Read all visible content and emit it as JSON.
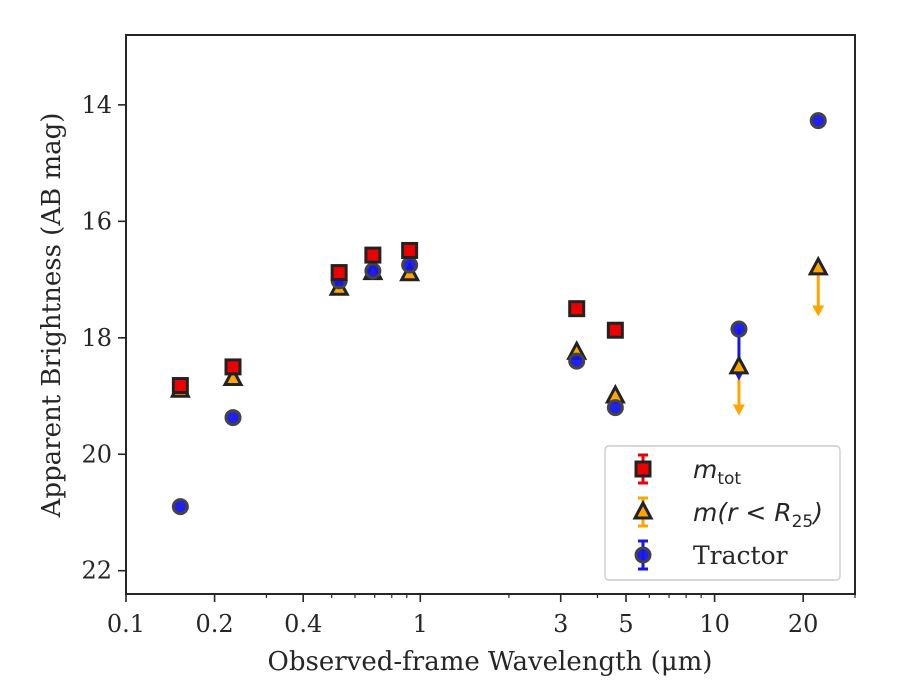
{
  "chart_data": {
    "type": "scatter",
    "xlabel": "Observed-frame Wavelength (μm)",
    "ylabel": "Apparent Brightness (AB mag)",
    "xscale": "log",
    "xlim": [
      0.1,
      30
    ],
    "ylim": [
      22.4,
      12.8
    ],
    "y_inverted": true,
    "xticks": [
      {
        "value": 0.1,
        "label": "0.1"
      },
      {
        "value": 0.2,
        "label": "0.2"
      },
      {
        "value": 0.4,
        "label": "0.4"
      },
      {
        "value": 1,
        "label": "1"
      },
      {
        "value": 3,
        "label": "3"
      },
      {
        "value": 5,
        "label": "5"
      },
      {
        "value": 10,
        "label": "10"
      },
      {
        "value": 20,
        "label": "20"
      }
    ],
    "yticks": [
      {
        "value": 14,
        "label": "14"
      },
      {
        "value": 16,
        "label": "16"
      },
      {
        "value": 18,
        "label": "18"
      },
      {
        "value": 20,
        "label": "20"
      },
      {
        "value": 22,
        "label": "22"
      }
    ],
    "grid": false,
    "legend_position": "lower-right",
    "series": [
      {
        "name": "m_tot",
        "legend_parts": {
          "main": "m",
          "sub": "tot"
        },
        "marker": "square",
        "color": "#ee0000",
        "edge": "#222222",
        "points": [
          {
            "x": 0.153,
            "y": 18.82
          },
          {
            "x": 0.231,
            "y": 18.5
          },
          {
            "x": 0.53,
            "y": 16.88
          },
          {
            "x": 0.69,
            "y": 16.58
          },
          {
            "x": 0.92,
            "y": 16.5
          },
          {
            "x": 3.4,
            "y": 17.5
          },
          {
            "x": 4.6,
            "y": 17.87
          }
        ]
      },
      {
        "name": "m(r < R25)",
        "legend_parts": {
          "main": "m(r < R",
          "sub": "25",
          "close": ")"
        },
        "marker": "triangle",
        "color": "#ffa500",
        "edge": "#222222",
        "points": [
          {
            "x": 0.153,
            "y": 18.9
          },
          {
            "x": 0.231,
            "y": 18.7
          },
          {
            "x": 0.53,
            "y": 17.15
          },
          {
            "x": 0.69,
            "y": 16.88
          },
          {
            "x": 0.92,
            "y": 16.9
          },
          {
            "x": 3.4,
            "y": 18.25
          },
          {
            "x": 4.6,
            "y": 19.0
          },
          {
            "x": 12.1,
            "y": 18.5,
            "upper_limit_to": 19.3
          },
          {
            "x": 22.5,
            "y": 16.8,
            "upper_limit_to": 17.6
          }
        ]
      },
      {
        "name": "Tractor",
        "legend_parts": {
          "main": "Tractor"
        },
        "marker": "circle",
        "color": "#1515ee",
        "edge": "#444444",
        "points": [
          {
            "x": 0.153,
            "y": 20.9
          },
          {
            "x": 0.231,
            "y": 19.37
          },
          {
            "x": 0.53,
            "y": 17.02
          },
          {
            "x": 0.69,
            "y": 16.85
          },
          {
            "x": 0.92,
            "y": 16.75
          },
          {
            "x": 3.4,
            "y": 18.4
          },
          {
            "x": 4.6,
            "y": 19.2
          },
          {
            "x": 12.1,
            "y": 17.85,
            "upper_limit_to": 18.7
          },
          {
            "x": 22.5,
            "y": 14.27
          }
        ]
      }
    ]
  }
}
